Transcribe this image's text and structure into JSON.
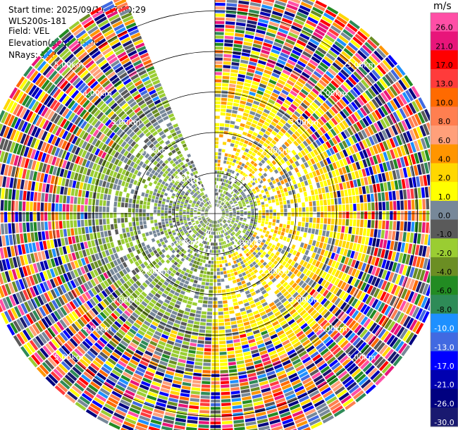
{
  "header": {
    "start_time": "Start time: 2025/09/11 17:00:29",
    "instrument": "WLS200s-181",
    "field": "Field: VEL",
    "elevation": "Elevation(deg): 35.00",
    "nrays": "NRays: 113"
  },
  "chart_data": {
    "type": "heatmap",
    "projection": "polar-ppi",
    "range_rings_km": [
      1,
      2,
      3,
      4,
      5
    ],
    "range_ring_labels": [
      "1.00km",
      "2.00km",
      "3.00km",
      "4.00km",
      "5.00km"
    ],
    "max_range_km": 5.8,
    "missing_sector_deg": [
      337,
      360
    ],
    "colorbar": {
      "unit": "m/s",
      "tick_labels": [
        "26.0",
        "21.0",
        "17.0",
        "13.0",
        "10.0",
        "8.0",
        "6.0",
        "4.0",
        "2.0",
        "1.0",
        "0.0",
        "-1.0",
        "-2.0",
        "-4.0",
        "-6.0",
        "-8.0",
        "-10.0",
        "-13.0",
        "-17.0",
        "-21.0",
        "-26.0",
        "-30.0"
      ],
      "colors": [
        "#ff4fa6",
        "#e8157a",
        "#ff0000",
        "#ff3b3b",
        "#ff6a00",
        "#ff7f50",
        "#ffa07a",
        "#ff9500",
        "#ffd700",
        "#ffff00",
        "#778899",
        "#5a5a5a",
        "#9acd32",
        "#6b8e23",
        "#228b22",
        "#2e8b57",
        "#1e90ff",
        "#4169e1",
        "#0000ff",
        "#0000b0",
        "#000080",
        "#191970"
      ]
    }
  }
}
